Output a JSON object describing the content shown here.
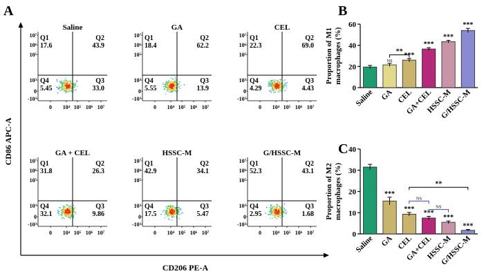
{
  "panel_labels": {
    "a": "A",
    "b": "B",
    "c": "C"
  },
  "flow": {
    "y_axis_label": "CD86 APC-A",
    "x_axis_label": "CD206 PE-A",
    "y_ticks": [
      "10⁷",
      "10⁶",
      "10⁵",
      "10³",
      "0",
      "-10³"
    ],
    "x_ticks": [
      "0",
      "10⁴",
      "10⁵",
      "10⁶",
      "10⁷"
    ],
    "panels": [
      {
        "title": "Saline",
        "q1": {
          "label": "Q1",
          "value": "17.6"
        },
        "q2": {
          "label": "Q2",
          "value": "43.9"
        },
        "q3": {
          "label": "Q3",
          "value": "33.0"
        },
        "q4": {
          "label": "Q4",
          "value": "5.45"
        }
      },
      {
        "title": "GA",
        "q1": {
          "label": "Q1",
          "value": "18.4"
        },
        "q2": {
          "label": "Q2",
          "value": "62.2"
        },
        "q3": {
          "label": "Q3",
          "value": "13.9"
        },
        "q4": {
          "label": "Q4",
          "value": "5.55"
        }
      },
      {
        "title": "CEL",
        "q1": {
          "label": "Q1",
          "value": "22.3"
        },
        "q2": {
          "label": "Q2",
          "value": "69.0"
        },
        "q3": {
          "label": "Q3",
          "value": "4.43"
        },
        "q4": {
          "label": "Q4",
          "value": "4.29"
        }
      },
      {
        "title": "GA + CEL",
        "q1": {
          "label": "Q1",
          "value": "31.8"
        },
        "q2": {
          "label": "Q2",
          "value": "26.3"
        },
        "q3": {
          "label": "Q3",
          "value": "9.86"
        },
        "q4": {
          "label": "Q4",
          "value": "32.1"
        }
      },
      {
        "title": "HSSC-M",
        "q1": {
          "label": "Q1",
          "value": "42.9"
        },
        "q2": {
          "label": "Q2",
          "value": "34.1"
        },
        "q3": {
          "label": "Q3",
          "value": "5.47"
        },
        "q4": {
          "label": "Q4",
          "value": "17.5"
        }
      },
      {
        "title": "G/HSSC-M",
        "q1": {
          "label": "Q1",
          "value": "52.3"
        },
        "q2": {
          "label": "Q2",
          "value": "43.1"
        },
        "q3": {
          "label": "Q3",
          "value": "1.68"
        },
        "q4": {
          "label": "Q4",
          "value": "2.95"
        }
      }
    ]
  },
  "chart_data": [
    {
      "type": "bar",
      "panel": "B",
      "ylabel_line1": "Proportion of M1",
      "ylabel_line2": "macrophages (%)",
      "categories": [
        "Saline",
        "GA",
        "CEL",
        "GA+CEL",
        "HSSC-M",
        "G/HSSC-M"
      ],
      "values": [
        19.5,
        21.5,
        26,
        36.5,
        43.5,
        54
      ],
      "errors": [
        1.5,
        1.5,
        1.5,
        1.3,
        1.2,
        2
      ],
      "colors": [
        "#1e9c6e",
        "#e3d98a",
        "#c8b46c",
        "#b42a78",
        "#c994a8",
        "#8a8ad2"
      ],
      "sig": [
        "",
        "",
        "***",
        "***",
        "***",
        "***"
      ],
      "bracket": {
        "from": 1,
        "to": 2,
        "left_label": "NS",
        "label": "**"
      },
      "ylim": [
        0,
        60
      ],
      "yticks": [
        0,
        20,
        40,
        60
      ]
    },
    {
      "type": "bar",
      "panel": "C",
      "ylabel_line1": "Proportion of M2",
      "ylabel_line2": "macrophages (%)",
      "categories": [
        "Saline",
        "GA",
        "CEL",
        "GA+CEL",
        "HSSC-M",
        "G/HSSC-M"
      ],
      "values": [
        31.5,
        15.5,
        9.3,
        7.5,
        5.5,
        1.7
      ],
      "errors": [
        1.3,
        1.8,
        0.8,
        0.8,
        0.6,
        0.4
      ],
      "colors": [
        "#1e9c6e",
        "#c8b46c",
        "#c8b46c",
        "#b42a78",
        "#c994a8",
        "#8a8ad2"
      ],
      "sig": [
        "",
        "***",
        "***",
        "***",
        "***",
        "***"
      ],
      "brackets": [
        {
          "from": 2,
          "to": 5,
          "label": "**"
        },
        {
          "from": 2,
          "to": 3,
          "label": "NS"
        },
        {
          "from": 3,
          "to": 4,
          "label": "NS"
        }
      ],
      "ylim": [
        0,
        40
      ],
      "yticks": [
        0,
        10,
        20,
        30,
        40
      ]
    }
  ]
}
